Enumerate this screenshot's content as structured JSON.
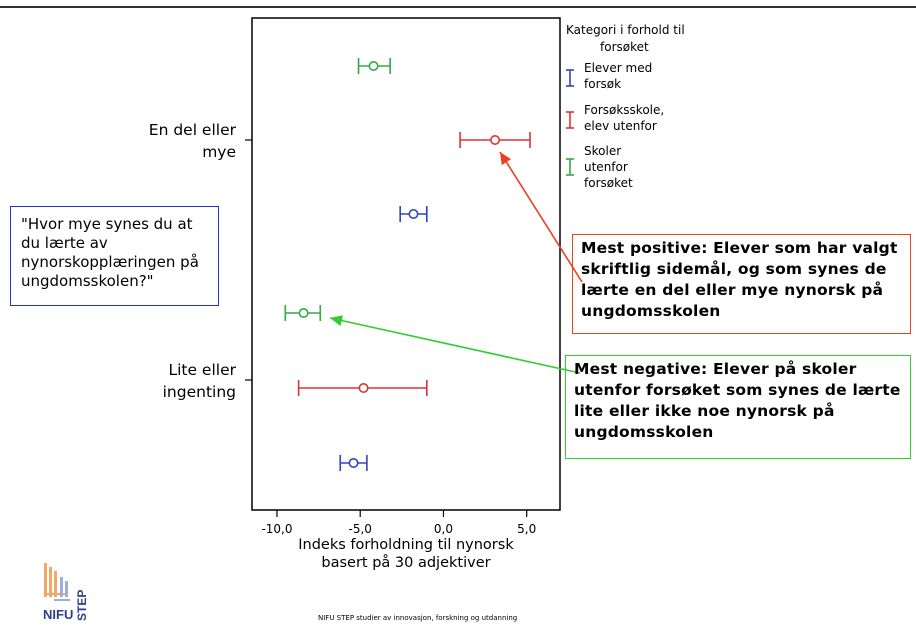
{
  "question": "\"Hvor mye synes du at du lærte av nynorskopplæringen på ungdomsskolen?\"",
  "callouts": {
    "positive": "Mest positive: Elever som har valgt skriftlig sidemål, og som synes de lærte en del eller mye nynorsk på ungdomsskolen",
    "negative": "Mest negative: Elever på skoler utenfor forsøket som synes de lærte lite eller ikke noe nynorsk på ungdomsskolen"
  },
  "footer": "NIFU STEP studier av innovasjon, forskning og utdanning",
  "logo_text": {
    "word": "NIFU",
    "vertical": "STEP"
  },
  "colors": {
    "blue": "#3344bb",
    "red": "#dd3333",
    "green": "#33aa44",
    "callout_pos": "#e8421e",
    "callout_neg": "#33cc33"
  },
  "chart_data": {
    "type": "scatter",
    "subtype": "error-bar",
    "xlabel": [
      "Indeks forholdning til nynorsk",
      "basert på 30 adjektiver"
    ],
    "xlim": [
      -11.5,
      7
    ],
    "xticks": [
      -10,
      -5,
      0,
      5
    ],
    "xtick_labels": [
      "-10,0",
      "-5,0",
      "0,0",
      "5,0"
    ],
    "categories": [
      "En del eller mye",
      "Lite eller ingenting"
    ],
    "legend_title": [
      "Kategori i forhold til",
      "forsøket"
    ],
    "legend_position": "top-right, outside plot",
    "series": [
      {
        "name": "Elever med forsøk",
        "color": "#3344bb",
        "values": [
          {
            "category": "En del eller mye",
            "mean": -1.8,
            "low": -2.6,
            "high": -1.0
          },
          {
            "category": "Lite eller ingenting",
            "mean": -5.4,
            "low": -6.2,
            "high": -4.6
          }
        ]
      },
      {
        "name": "Forsøksskole, elev utenfor",
        "color": "#dd3333",
        "values": [
          {
            "category": "En del eller mye",
            "mean": 3.1,
            "low": 1.0,
            "high": 5.2
          },
          {
            "category": "Lite eller ingenting",
            "mean": -4.8,
            "low": -8.7,
            "high": -1.0
          }
        ]
      },
      {
        "name": "Skoler utenfor forsøket",
        "color": "#33aa44",
        "values": [
          {
            "category": "En del eller mye",
            "mean": -4.2,
            "low": -5.1,
            "high": -3.2
          },
          {
            "category": "Lite eller ingenting",
            "mean": -8.4,
            "low": -9.5,
            "high": -7.4
          }
        ]
      }
    ]
  }
}
